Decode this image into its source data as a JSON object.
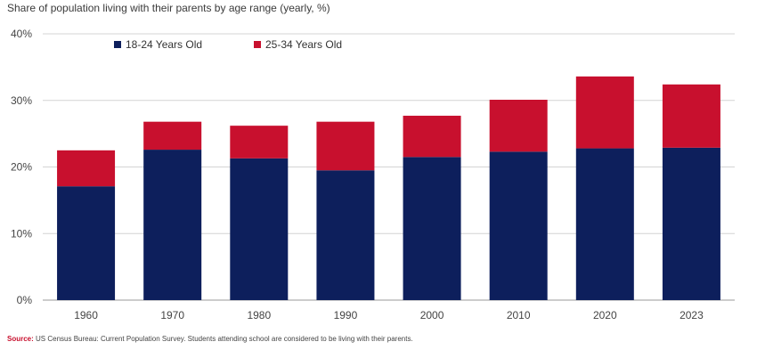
{
  "subtitle": "Share of population living with their parents by age range (yearly, %)",
  "source_label": "Source:",
  "source_text": "US Census Bureau: Current Population Survey.  Students attending school are considered to be living with their parents.",
  "chart_data": {
    "type": "bar",
    "stacked": true,
    "categories": [
      "1960",
      "1970",
      "1980",
      "1990",
      "2000",
      "2010",
      "2020",
      "2023"
    ],
    "series": [
      {
        "name": "18-24 Years Old",
        "color": "#0d1f5c",
        "values": [
          17.1,
          22.6,
          21.3,
          19.5,
          21.5,
          22.3,
          22.8,
          22.9
        ]
      },
      {
        "name": "25-34 Years Old",
        "color": "#c8102e",
        "values": [
          5.4,
          4.2,
          4.9,
          7.3,
          6.2,
          7.8,
          10.8,
          9.5
        ]
      }
    ],
    "ylim": [
      0,
      40
    ],
    "yticks": [
      0,
      10,
      20,
      30,
      40
    ],
    "ytick_labels": [
      "0%",
      "10%",
      "20%",
      "30%",
      "40%"
    ],
    "grid": true,
    "legend_position": "top-left"
  }
}
